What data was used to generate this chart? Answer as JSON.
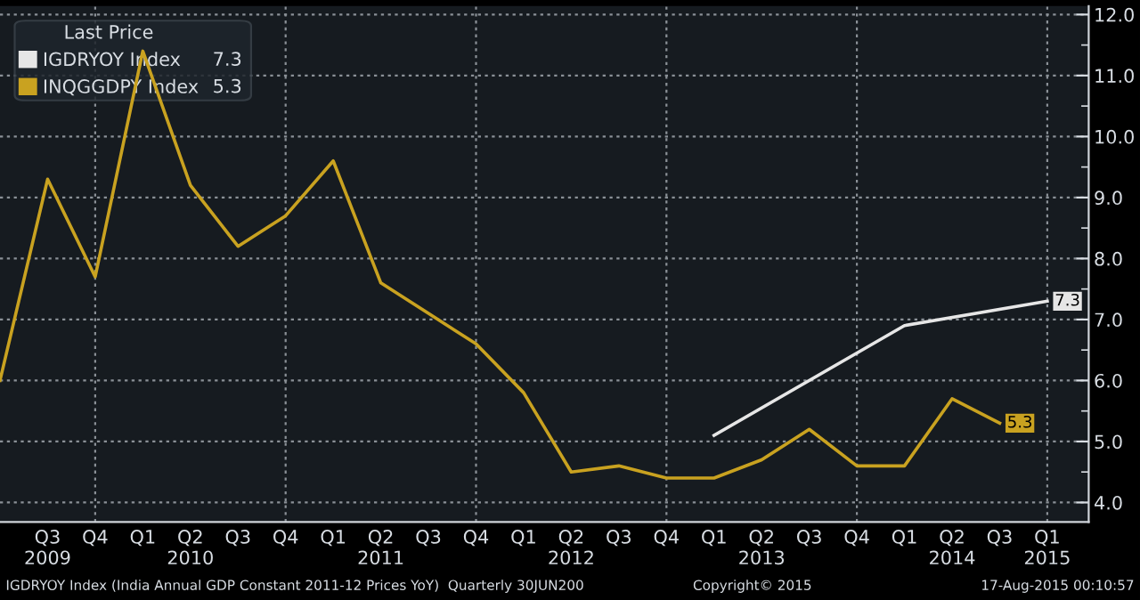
{
  "chart_data": {
    "type": "line",
    "legend_title": "Last Price",
    "categories": [
      null,
      "Q3\n2009",
      "Q4",
      "Q1",
      "Q2\n2010",
      "Q3",
      "Q4",
      "Q1",
      "Q2\n2011",
      "Q3",
      "Q4",
      "Q1",
      "Q2\n2012",
      "Q3",
      "Q4",
      "Q1",
      "Q2\n2013",
      "Q3",
      "Q4",
      "Q1",
      "Q2\n2014",
      "Q3",
      "Q1\n2015"
    ],
    "series": [
      {
        "name": "IGDRYOY Index",
        "color": "#e6e6e6",
        "values": [
          null,
          null,
          null,
          null,
          null,
          null,
          null,
          null,
          null,
          null,
          null,
          null,
          null,
          null,
          null,
          5.1,
          null,
          null,
          null,
          6.9,
          null,
          null,
          7.3
        ],
        "value_labels": [
          null,
          null,
          null,
          null,
          null,
          null,
          null,
          null,
          null,
          null,
          null,
          null,
          null,
          null,
          null,
          null,
          null,
          null,
          null,
          null,
          null,
          null,
          "7.3"
        ]
      },
      {
        "name": "INQGGDPY Index",
        "color": "#c9a220",
        "values": [
          6.0,
          9.3,
          7.7,
          11.4,
          9.2,
          8.2,
          8.7,
          9.6,
          7.6,
          7.1,
          6.6,
          5.8,
          4.5,
          4.6,
          4.4,
          4.4,
          4.7,
          5.2,
          4.6,
          4.6,
          5.7,
          5.3,
          null
        ],
        "value_labels": [
          null,
          null,
          null,
          null,
          null,
          null,
          null,
          null,
          null,
          null,
          null,
          null,
          null,
          null,
          null,
          null,
          null,
          null,
          null,
          null,
          null,
          "5.3",
          null
        ]
      }
    ],
    "ylim": [
      3.68,
      12.14
    ],
    "yticks": [
      {
        "value": 4,
        "label": "4.0"
      },
      {
        "value": 5,
        "label": "5.0"
      },
      {
        "value": 6,
        "label": "6.0"
      },
      {
        "value": 7,
        "label": "7.0"
      },
      {
        "value": 8,
        "label": "8.0"
      },
      {
        "value": 9,
        "label": "9.0"
      },
      {
        "value": 10,
        "label": "10.0"
      },
      {
        "value": 11,
        "label": "11.0"
      },
      {
        "value": 12,
        "label": "12.0"
      }
    ],
    "grid": true,
    "legend": "top left",
    "marker": "none",
    "line_style": "solid",
    "annotations": [
      "IGDRYOY Index (India Annual GDP Constant 2011-12 Prices YoY)  Quarterly 30JUN200",
      "Copyright© 2015",
      "17-Aug-2015 00:10:57"
    ]
  }
}
